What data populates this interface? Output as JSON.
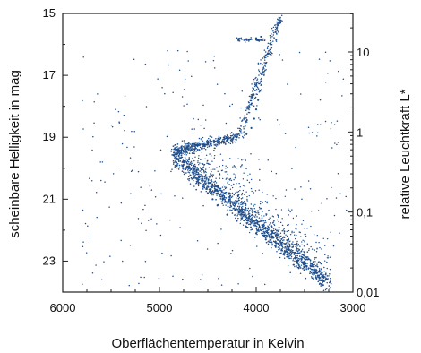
{
  "chart_data": {
    "type": "scatter",
    "xlabel": "Oberflächentemperatur in Kelvin",
    "ylabel": "scheinbare Helligkeit in mag",
    "y2label": "relative Leuchtkraft L*",
    "xlim": [
      6000,
      3000
    ],
    "ylim": [
      15,
      24
    ],
    "x_ticks": [
      6000,
      5000,
      4000,
      3000
    ],
    "x_tick_labels": [
      "6000",
      "5000",
      "4000",
      "3000"
    ],
    "y_ticks": [
      15,
      17,
      19,
      21,
      23
    ],
    "y_tick_labels": [
      "15",
      "17",
      "19",
      "21",
      "23"
    ],
    "y2_ticks": [
      0.01,
      0.1,
      1,
      10
    ],
    "y2_tick_labels": [
      "0,01",
      "0,1",
      "1",
      "10"
    ],
    "y2_scale": "log",
    "marker_color": "#1f4e8c",
    "grid": false,
    "series": [
      {
        "points": [
          [
            4800,
            19.6
          ],
          [
            4750,
            19.8
          ],
          [
            4700,
            20.0
          ],
          [
            4650,
            20.2
          ],
          [
            4600,
            20.4
          ],
          [
            4550,
            20.6
          ],
          [
            4500,
            20.8
          ],
          [
            4450,
            21.0
          ],
          [
            4400,
            21.2
          ],
          [
            4300,
            21.5
          ],
          [
            4200,
            21.7
          ],
          [
            4100,
            21.9
          ],
          [
            4000,
            22.1
          ],
          [
            3900,
            22.3
          ],
          [
            3800,
            22.5
          ],
          [
            3700,
            22.7
          ],
          [
            3600,
            22.9
          ],
          [
            3500,
            23.1
          ],
          [
            3400,
            23.3
          ],
          [
            3300,
            23.5
          ],
          [
            4850,
            19.5
          ],
          [
            4800,
            19.4
          ],
          [
            4700,
            19.3
          ],
          [
            4600,
            19.25
          ],
          [
            4500,
            19.2
          ],
          [
            4400,
            19.15
          ],
          [
            4300,
            19.1
          ],
          [
            4200,
            19.0
          ],
          [
            4100,
            18.9
          ],
          [
            4050,
            18.7
          ],
          [
            4020,
            18.4
          ],
          [
            4000,
            18.1
          ],
          [
            3980,
            17.8
          ],
          [
            3960,
            17.5
          ],
          [
            3950,
            17.2
          ],
          [
            3930,
            16.9
          ],
          [
            3900,
            16.6
          ],
          [
            3880,
            16.3
          ],
          [
            3850,
            16.0
          ],
          [
            3800,
            15.6
          ],
          [
            3750,
            15.3
          ],
          [
            4200,
            15.8
          ],
          [
            4100,
            15.85
          ],
          [
            4000,
            15.8
          ],
          [
            3950,
            15.75
          ]
        ]
      }
    ]
  }
}
